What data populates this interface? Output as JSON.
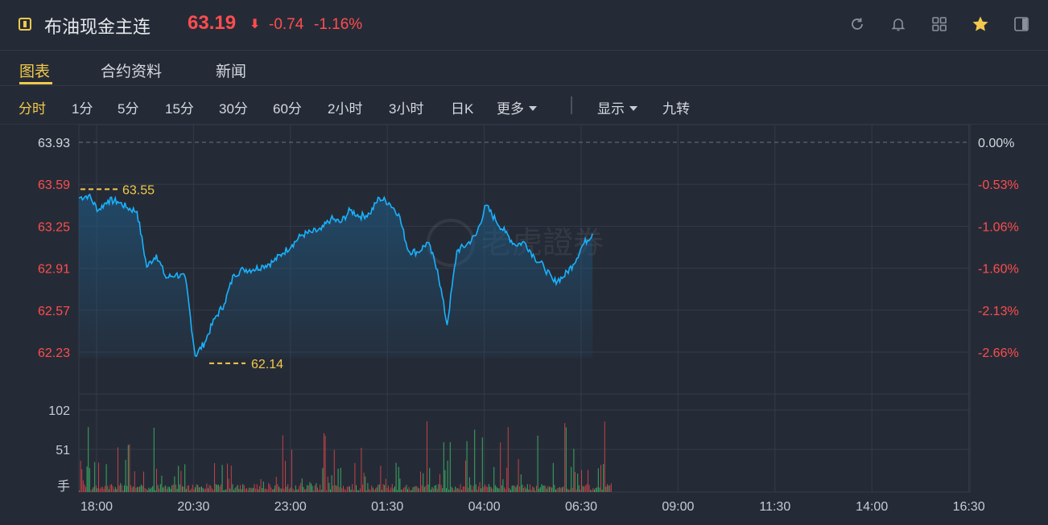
{
  "header": {
    "title": "布油现金主连",
    "price": "63.19",
    "arrow": "⬇",
    "change": "-0.74",
    "change_pct": "-1.16%",
    "icons": [
      "refresh-icon",
      "bell-icon",
      "grid-icon",
      "star-icon",
      "panel-icon"
    ],
    "colors": {
      "up": "#ff4d4f",
      "accent": "#f2c94c",
      "line": "#19b2ff"
    }
  },
  "tabs": [
    {
      "label": "图表",
      "active": true
    },
    {
      "label": "合约资料",
      "active": false
    },
    {
      "label": "新闻",
      "active": false
    }
  ],
  "toolbar": {
    "periods": [
      "分时",
      "1分",
      "5分",
      "15分",
      "30分",
      "60分",
      "2小时",
      "3小时",
      "日K"
    ],
    "active_period": "分时",
    "more": "更多",
    "display": "显示",
    "nine_turn": "九转"
  },
  "chart_data": {
    "type": "line",
    "prev_close": 63.93,
    "y_ticks_left": [
      "63.93",
      "63.59",
      "63.25",
      "62.91",
      "62.57",
      "62.23"
    ],
    "y_ticks_right": [
      "0.00%",
      "-0.53%",
      "-1.06%",
      "-1.60%",
      "-2.13%",
      "-2.66%"
    ],
    "ylim": [
      62.14,
      63.93
    ],
    "x_ticks": [
      "18:00",
      "20:30",
      "23:00",
      "01:30",
      "04:00",
      "06:30",
      "09:00",
      "11:30",
      "14:00",
      "16:30"
    ],
    "series": [
      {
        "time": [
          "18:00",
          "18:15",
          "18:30",
          "18:45",
          "19:00",
          "19:15",
          "19:30",
          "19:45",
          "20:00",
          "20:15",
          "20:30",
          "20:45",
          "21:00",
          "21:15",
          "21:30",
          "21:45",
          "22:00",
          "22:15",
          "22:30",
          "22:45",
          "23:00",
          "23:15",
          "23:30",
          "23:45",
          "00:00",
          "00:15",
          "00:30",
          "00:45",
          "01:00",
          "01:15",
          "01:30",
          "01:45",
          "02:00",
          "02:15",
          "02:30",
          "02:45",
          "03:00",
          "03:15",
          "03:30",
          "03:45",
          "04:00",
          "04:15",
          "04:30",
          "04:45",
          "05:00",
          "05:15",
          "05:30",
          "05:45",
          "06:00",
          "06:15",
          "06:30",
          "06:45",
          "07:00",
          "07:15"
        ],
        "values": [
          63.48,
          63.5,
          63.38,
          63.46,
          63.45,
          63.4,
          63.37,
          62.92,
          63.02,
          62.83,
          62.86,
          62.83,
          62.2,
          62.31,
          62.5,
          62.62,
          62.86,
          62.9,
          62.9,
          62.93,
          62.96,
          63.03,
          63.1,
          63.18,
          63.2,
          63.22,
          63.31,
          63.28,
          63.38,
          63.33,
          63.35,
          63.48,
          63.44,
          63.35,
          63.05,
          63.04,
          63.12,
          62.9,
          62.45,
          63.05,
          63.1,
          63.18,
          63.42,
          63.3,
          63.2,
          63.1,
          63.12,
          63.0,
          62.92,
          62.8,
          62.84,
          62.94,
          63.1,
          63.19
        ]
      }
    ],
    "high_label": "63.55",
    "low_label": "62.14",
    "volume": {
      "y_ticks": [
        "102",
        "51"
      ],
      "unit": "手"
    },
    "watermark": "老虎證券"
  }
}
